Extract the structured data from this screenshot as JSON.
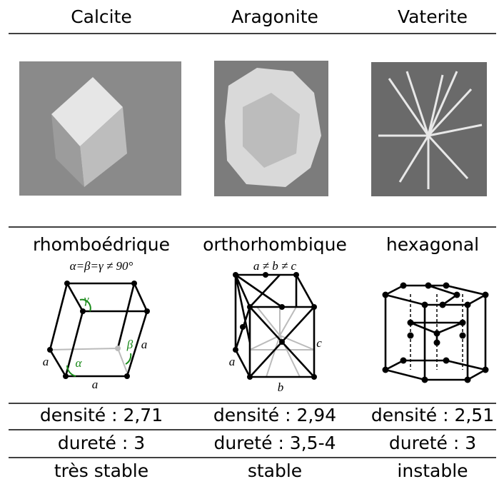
{
  "table": {
    "columns": [
      {
        "name": "Calcite",
        "system": "rhomboédrique",
        "diagram": {
          "caption": "α=β=γ ≠ 90°",
          "labels": [
            "γ",
            "α",
            "β",
            "a",
            "a",
            "a"
          ]
        },
        "density": "densité : 2,71",
        "hardness": "dureté : 3",
        "stability": "très stable"
      },
      {
        "name": "Aragonite",
        "system": "orthorhombique",
        "diagram": {
          "caption": "a ≠ b ≠ c",
          "labels": [
            "c",
            "a",
            "b"
          ]
        },
        "density": "densité : 2,94",
        "hardness": "dureté : 3,5-4",
        "stability": "stable"
      },
      {
        "name": "Vaterite",
        "system": "hexagonal",
        "density": "densité : 2,51",
        "hardness": "dureté : 3",
        "stability": "instable"
      }
    ]
  }
}
